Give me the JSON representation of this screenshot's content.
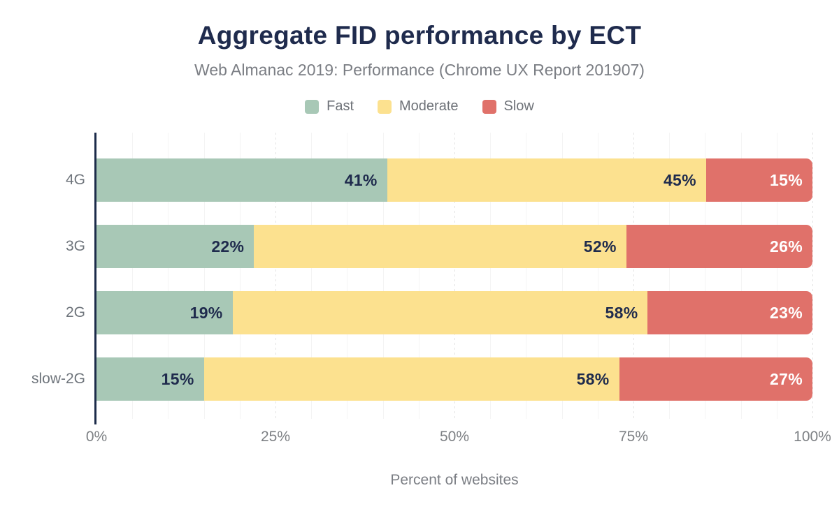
{
  "title": "Aggregate FID performance by ECT",
  "subtitle": "Web Almanac 2019: Performance (Chrome UX Report 201907)",
  "colors": {
    "title_navy": "#1f2b4d",
    "axis_navy": "#1c2b4a",
    "fast_green": "#a8c8b6",
    "moderate_yellow": "#fce18f",
    "slow_red": "#e0716a",
    "label_on_light": "#1f2b4d",
    "label_on_red": "#ffffff",
    "grid_minor": "#f4f4f4",
    "grid_major": "#e3e3e3",
    "muted_text": "#7b7e84"
  },
  "chart_data": {
    "type": "bar",
    "stacked": true,
    "orientation": "horizontal",
    "title": "Aggregate FID performance by ECT",
    "subtitle": "Web Almanac 2019: Performance (Chrome UX Report 201907)",
    "xlabel": "Percent of websites",
    "ylabel": "",
    "categories": [
      "4G",
      "3G",
      "2G",
      "slow-2G"
    ],
    "series": [
      {
        "name": "Fast",
        "color": "#a8c8b6",
        "label_color": "#1f2b4d",
        "values": [
          41,
          22,
          19,
          15
        ]
      },
      {
        "name": "Moderate",
        "color": "#fce18f",
        "label_color": "#1f2b4d",
        "values": [
          45,
          52,
          58,
          58
        ]
      },
      {
        "name": "Slow",
        "color": "#e0716a",
        "label_color": "#ffffff",
        "values": [
          15,
          26,
          23,
          27
        ]
      }
    ],
    "bar_labels": [
      [
        "41%",
        "45%",
        "15%"
      ],
      [
        "22%",
        "52%",
        "26%"
      ],
      [
        "19%",
        "58%",
        "23%"
      ],
      [
        "15%",
        "58%",
        "27%"
      ]
    ],
    "x_ticks": [
      "0%",
      "25%",
      "50%",
      "75%",
      "100%"
    ],
    "x_tick_values": [
      0,
      25,
      50,
      75,
      100
    ],
    "xlim": [
      0,
      100
    ],
    "grid": "vertical",
    "grid_minor_step": 5,
    "grid_major_step": 25,
    "legend_position": "top"
  }
}
